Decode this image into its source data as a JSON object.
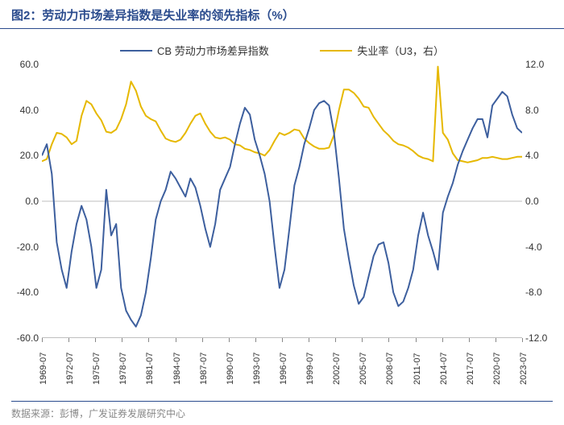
{
  "title": "图2：劳动力市场差异指数是失业率的领先指标（%）",
  "footer": "数据来源：彭博，广发证券发展研究中心",
  "chart": {
    "type": "line",
    "background_color": "#ffffff",
    "grid_color": "#e0e0e0",
    "axis_color": "#bfbfbf",
    "series": [
      {
        "name": "CB 劳动力市场差异指数",
        "color": "#3d5f9e",
        "line_width": 2,
        "axis": "left",
        "data": [
          20,
          25,
          12,
          -18,
          -30,
          -38,
          -22,
          -10,
          -2,
          -8,
          -20,
          -38,
          -30,
          5,
          -15,
          -10,
          -38,
          -48,
          -52,
          -55,
          -50,
          -40,
          -25,
          -8,
          0,
          5,
          13,
          10,
          6,
          2,
          10,
          6,
          -2,
          -12,
          -20,
          -10,
          5,
          10,
          15,
          25,
          34,
          41,
          38,
          27,
          20,
          12,
          0,
          -20,
          -38,
          -30,
          -12,
          7,
          15,
          25,
          32,
          40,
          43,
          44,
          42,
          30,
          10,
          -12,
          -25,
          -37,
          -45,
          -42,
          -33,
          -24,
          -19,
          -18,
          -27,
          -40,
          -46,
          -44,
          -38,
          -30,
          -15,
          -5,
          -15,
          -22,
          -30,
          -5,
          2,
          8,
          16,
          22,
          27,
          32,
          36,
          36,
          28,
          42,
          45,
          48,
          46,
          38,
          32,
          30
        ]
      },
      {
        "name": "失业率（U3，右）",
        "color": "#e6b800",
        "line_width": 2,
        "axis": "right",
        "data": [
          3.5,
          3.7,
          5.0,
          6.0,
          5.9,
          5.6,
          5.0,
          5.3,
          7.5,
          8.8,
          8.5,
          7.7,
          7.1,
          6.1,
          6.0,
          6.3,
          7.2,
          8.5,
          10.5,
          9.7,
          8.3,
          7.5,
          7.2,
          7.0,
          6.2,
          5.5,
          5.3,
          5.2,
          5.4,
          6.0,
          6.8,
          7.5,
          7.7,
          6.8,
          6.1,
          5.6,
          5.5,
          5.6,
          5.4,
          5.0,
          4.9,
          4.6,
          4.5,
          4.3,
          4.2,
          4.0,
          4.5,
          5.3,
          6.0,
          5.8,
          6.0,
          6.3,
          6.2,
          5.5,
          5.1,
          4.8,
          4.6,
          4.6,
          4.7,
          5.8,
          8.0,
          9.8,
          9.8,
          9.5,
          9.0,
          8.3,
          8.2,
          7.4,
          6.8,
          6.2,
          5.8,
          5.3,
          5.0,
          4.9,
          4.7,
          4.4,
          4.0,
          3.8,
          3.7,
          3.5,
          11.8,
          6.0,
          5.4,
          4.2,
          3.6,
          3.5,
          3.4,
          3.5,
          3.6,
          3.8,
          3.8,
          3.9,
          3.8,
          3.7,
          3.7,
          3.8,
          3.9,
          3.9
        ]
      }
    ],
    "left_axis": {
      "label_fontsize": 12,
      "ylim": [
        -60,
        60
      ],
      "ticks": [
        -60,
        -40,
        -20,
        0,
        20,
        40,
        60
      ]
    },
    "right_axis": {
      "label_fontsize": 12,
      "ylim": [
        -12,
        12
      ],
      "ticks": [
        -12,
        -8,
        -4,
        0,
        4,
        8,
        12
      ]
    },
    "x_axis": {
      "label_fontsize": 11,
      "rotation": -90,
      "labels": [
        "1969-07",
        "1972-07",
        "1975-07",
        "1978-07",
        "1981-07",
        "1984-07",
        "1987-07",
        "1990-07",
        "1993-07",
        "1996-07",
        "1999-07",
        "2002-07",
        "2005-07",
        "2008-07",
        "2011-07",
        "2014-07",
        "2017-07",
        "2020-07",
        "2023-07"
      ]
    },
    "legend": {
      "position": "top",
      "fontsize": 13
    }
  }
}
